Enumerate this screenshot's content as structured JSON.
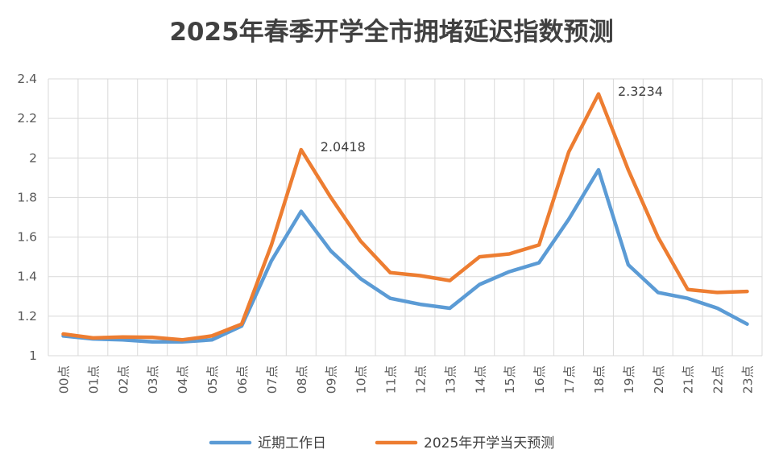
{
  "chart_data": {
    "type": "line",
    "title": "2025年春季开学全市拥堵延迟指数预测",
    "categories": [
      "00点",
      "01点",
      "02点",
      "03点",
      "04点",
      "05点",
      "06点",
      "07点",
      "08点",
      "09点",
      "10点",
      "11点",
      "12点",
      "13点",
      "14点",
      "15点",
      "16点",
      "17点",
      "18点",
      "19点",
      "20点",
      "21点",
      "22点",
      "23点"
    ],
    "ylim": [
      1,
      2.4
    ],
    "yticks": [
      "1",
      "1.2",
      "1.4",
      "1.6",
      "1.8",
      "2",
      "2.2",
      "2.4"
    ],
    "ytick_values": [
      1,
      1.2,
      1.4,
      1.6,
      1.8,
      2,
      2.2,
      2.4
    ],
    "grid": true,
    "legend": "bottom",
    "series": [
      {
        "name": "近期工作日",
        "color": "#5B9BD5",
        "values": [
          1.1,
          1.085,
          1.08,
          1.07,
          1.07,
          1.08,
          1.15,
          1.48,
          1.73,
          1.53,
          1.39,
          1.29,
          1.26,
          1.24,
          1.36,
          1.425,
          1.47,
          1.69,
          1.94,
          1.46,
          1.32,
          1.29,
          1.24,
          1.16
        ]
      },
      {
        "name": "2025年开学当天预测",
        "color": "#ED7D31",
        "values": [
          1.11,
          1.09,
          1.095,
          1.093,
          1.08,
          1.1,
          1.16,
          1.56,
          2.0418,
          1.8,
          1.58,
          1.42,
          1.405,
          1.38,
          1.5,
          1.515,
          1.56,
          2.03,
          2.3234,
          1.94,
          1.6,
          1.335,
          1.32,
          1.325
        ]
      }
    ],
    "annotations": [
      {
        "text": "2.0418",
        "series": 1,
        "index": 8
      },
      {
        "text": "2.3234",
        "series": 1,
        "index": 18
      }
    ]
  }
}
